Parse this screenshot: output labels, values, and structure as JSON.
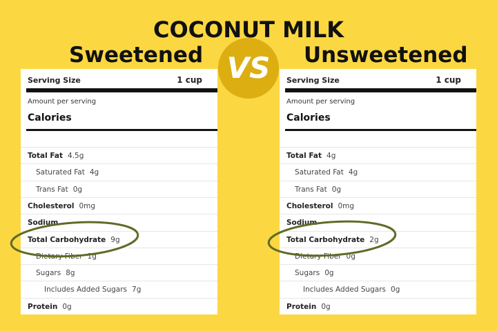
{
  "title": "COCONUT MILK",
  "vs": "VS",
  "panels": [
    {
      "heading": "Sweetened",
      "serving_label": "Serving Size",
      "serving_value": "1 cup",
      "amount_label": "Amount per serving",
      "calories_label": "Calories",
      "rows": [
        {
          "label": "Total Fat",
          "value": "4.5g"
        },
        {
          "label": "Saturated Fat",
          "value": "4g"
        },
        {
          "label": "Trans Fat",
          "value": "0g"
        },
        {
          "label": "Cholesterol",
          "value": "0mg"
        },
        {
          "label": "Sodium"
        },
        {
          "label": "Total Carbohydrate",
          "value": "9g"
        },
        {
          "label": "Dietary Fiber",
          "value": "1g"
        },
        {
          "label": "Sugars",
          "value": "8g"
        },
        {
          "label": "Includes Added Sugars",
          "value": "7g"
        },
        {
          "label": "Protein",
          "value": "0g"
        }
      ]
    },
    {
      "heading": "Unsweetened",
      "serving_label": "Serving Size",
      "serving_value": "1 cup",
      "amount_label": "Amount per serving",
      "calories_label": "Calories",
      "rows": [
        {
          "label": "Total Fat",
          "value": "4g"
        },
        {
          "label": "Saturated Fat",
          "value": "4g"
        },
        {
          "label": "Trans Fat",
          "value": "0g"
        },
        {
          "label": "Cholesterol",
          "value": "0mg"
        },
        {
          "label": "Sodium"
        },
        {
          "label": "Total Carbohydrate",
          "value": "2g"
        },
        {
          "label": "Dietary Fiber",
          "value": "0g"
        },
        {
          "label": "Sugars",
          "value": "0g"
        },
        {
          "label": "Includes Added Sugars",
          "value": "0g"
        },
        {
          "label": "Protein",
          "value": "0g"
        }
      ]
    }
  ]
}
